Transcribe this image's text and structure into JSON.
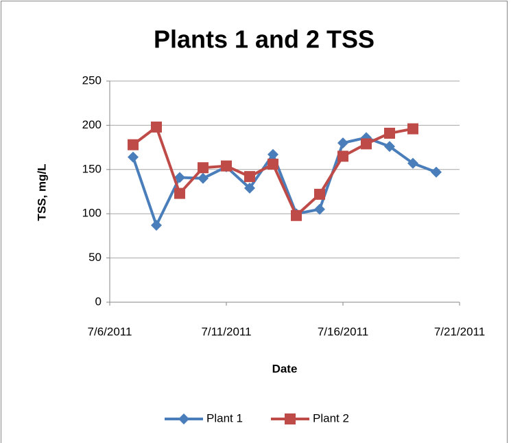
{
  "chart_data": {
    "type": "line",
    "title": "Plants 1 and 2 TSS",
    "x_label": "Date",
    "y_label": "TSS, mg/L",
    "x": [
      "7/7/2011",
      "7/8/2011",
      "7/9/2011",
      "7/10/2011",
      "7/11/2011",
      "7/12/2011",
      "7/13/2011",
      "7/14/2011",
      "7/15/2011",
      "7/16/2011",
      "7/17/2011",
      "7/18/2011",
      "7/19/2011",
      "7/20/2011"
    ],
    "series": [
      {
        "name": "Plant 1",
        "color": "#4a7ebb",
        "marker": "diamond",
        "values": [
          164,
          87,
          141,
          140,
          153,
          129,
          167,
          100,
          105,
          180,
          186,
          176,
          157,
          147
        ]
      },
      {
        "name": "Plant 2",
        "color": "#be4b48",
        "marker": "square",
        "values": [
          178,
          198,
          123,
          152,
          154,
          142,
          156,
          98,
          122,
          165,
          179,
          191,
          196,
          null
        ]
      }
    ],
    "xlim": [
      "7/6/2011",
      "7/21/2011"
    ],
    "xticks": [
      "7/6/2011",
      "7/11/2011",
      "7/16/2011",
      "7/21/2011"
    ],
    "ylim": [
      0,
      250
    ],
    "yticks": [
      0,
      50,
      100,
      150,
      200,
      250
    ],
    "grid": true,
    "legend": "bottom"
  }
}
